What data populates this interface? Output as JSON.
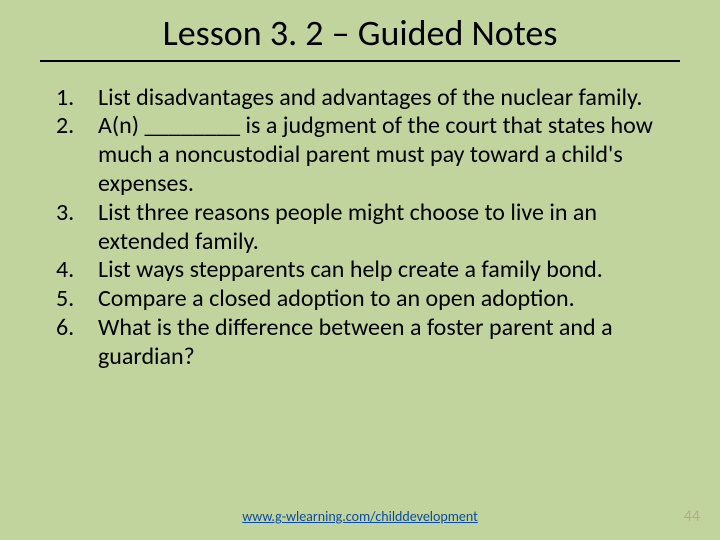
{
  "background_color": "#c2d49e",
  "title": {
    "text": "Lesson 3. 2 – Guided Notes",
    "fontsize": 36,
    "fontweight": 400,
    "underline_color": "#000000",
    "color": "#000000"
  },
  "list": {
    "items": [
      "List disadvantages and advantages of the nuclear family.",
      "A(n)   ________ is a judgment of the court that states how much a noncustodial parent must pay toward a child's expenses.",
      "List three reasons people might choose to live in an extended family.",
      "List ways stepparents can help create a family bond.",
      "Compare a closed adoption to an open adoption.",
      "What is the difference between a foster parent and a guardian?"
    ],
    "fontsize": 24,
    "color": "#000000"
  },
  "footer": {
    "link_text": "www.g-wlearning.com/childdevelopment",
    "link_color": "#0b4aa2",
    "fontsize": 14
  },
  "page_number": {
    "text": "44",
    "color": "#b9a98e",
    "fontsize": 16
  }
}
